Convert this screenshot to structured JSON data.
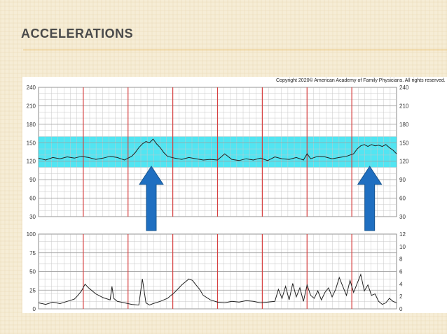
{
  "slide": {
    "title": "ACCELERATIONS"
  },
  "figure": {
    "copyright": "Copyright 2020© American Academy of Family Physicians. All rights reserved."
  },
  "colors": {
    "band": "#33e0f0",
    "arrow": "#1f6fc1",
    "marker": "#d64040",
    "trace": "#222222",
    "grid": "#c8c8c8",
    "rule": "#e7b85c"
  },
  "chart_data": [
    {
      "type": "line",
      "name": "fetal-heart-rate",
      "ylim": [
        30,
        240
      ],
      "y_ticks": [
        "240",
        "210",
        "180",
        "150",
        "120",
        "90",
        "60",
        "30"
      ],
      "right_ticks": [
        "240",
        "210",
        "180",
        "150",
        "120",
        "90",
        "60",
        "30"
      ],
      "band": [
        110,
        160
      ],
      "minute_markers": 8,
      "accelerations_at": [
        0.315,
        0.925
      ],
      "x": [
        0,
        0.02,
        0.04,
        0.06,
        0.08,
        0.1,
        0.12,
        0.14,
        0.16,
        0.18,
        0.2,
        0.22,
        0.24,
        0.26,
        0.27,
        0.28,
        0.29,
        0.3,
        0.31,
        0.32,
        0.33,
        0.34,
        0.35,
        0.36,
        0.38,
        0.4,
        0.42,
        0.44,
        0.46,
        0.48,
        0.5,
        0.52,
        0.54,
        0.56,
        0.58,
        0.6,
        0.62,
        0.64,
        0.66,
        0.68,
        0.7,
        0.72,
        0.74,
        0.75,
        0.76,
        0.78,
        0.8,
        0.82,
        0.84,
        0.86,
        0.88,
        0.89,
        0.9,
        0.91,
        0.92,
        0.93,
        0.94,
        0.95,
        0.96,
        0.97,
        0.98,
        0.99,
        1.0
      ],
      "fhr": [
        125,
        122,
        126,
        124,
        127,
        125,
        128,
        126,
        123,
        125,
        128,
        126,
        122,
        128,
        134,
        142,
        148,
        152,
        150,
        156,
        148,
        142,
        134,
        128,
        125,
        123,
        126,
        124,
        122,
        123,
        122,
        132,
        123,
        121,
        124,
        122,
        125,
        121,
        127,
        124,
        123,
        126,
        122,
        132,
        124,
        128,
        127,
        124,
        126,
        128,
        132,
        140,
        145,
        147,
        144,
        147,
        145,
        146,
        144,
        147,
        142,
        138,
        132
      ]
    },
    {
      "type": "line",
      "name": "uterine-activity",
      "ylim": [
        0,
        100
      ],
      "y_ticks": [
        "100",
        "75",
        "50",
        "25",
        "0"
      ],
      "right_ticks": [
        "12",
        "10",
        "8",
        "6",
        "4",
        "2",
        "0"
      ],
      "x": [
        0,
        0.02,
        0.04,
        0.06,
        0.08,
        0.1,
        0.11,
        0.12,
        0.13,
        0.14,
        0.16,
        0.18,
        0.2,
        0.205,
        0.21,
        0.22,
        0.24,
        0.26,
        0.28,
        0.29,
        0.3,
        0.31,
        0.32,
        0.34,
        0.36,
        0.38,
        0.4,
        0.41,
        0.42,
        0.43,
        0.44,
        0.45,
        0.46,
        0.48,
        0.5,
        0.52,
        0.54,
        0.56,
        0.58,
        0.6,
        0.62,
        0.64,
        0.66,
        0.67,
        0.68,
        0.69,
        0.7,
        0.71,
        0.72,
        0.73,
        0.74,
        0.75,
        0.76,
        0.77,
        0.78,
        0.79,
        0.8,
        0.81,
        0.82,
        0.83,
        0.84,
        0.85,
        0.86,
        0.87,
        0.88,
        0.89,
        0.9,
        0.91,
        0.92,
        0.93,
        0.94,
        0.95,
        0.96,
        0.97,
        0.98,
        0.99,
        1.0
      ],
      "uterine": [
        8,
        6,
        9,
        7,
        10,
        13,
        18,
        24,
        33,
        28,
        20,
        15,
        12,
        30,
        14,
        10,
        8,
        6,
        5,
        40,
        8,
        5,
        7,
        10,
        14,
        22,
        32,
        36,
        40,
        38,
        32,
        26,
        18,
        12,
        9,
        8,
        10,
        9,
        11,
        10,
        8,
        9,
        10,
        26,
        14,
        30,
        12,
        34,
        16,
        28,
        10,
        32,
        18,
        14,
        24,
        12,
        22,
        28,
        16,
        26,
        42,
        30,
        18,
        38,
        22,
        34,
        46,
        24,
        32,
        18,
        20,
        10,
        6,
        8,
        14,
        10,
        8
      ]
    }
  ]
}
